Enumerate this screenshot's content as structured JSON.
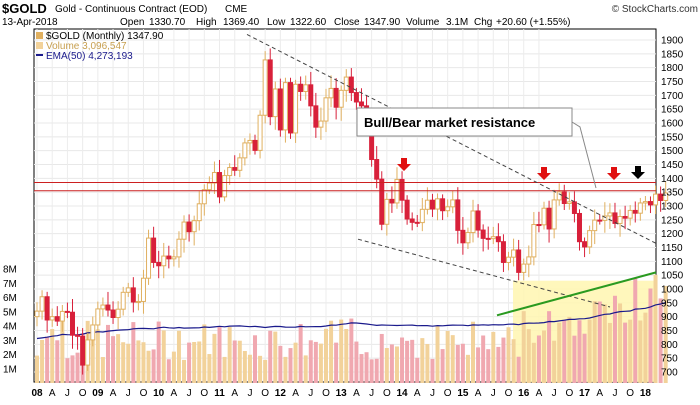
{
  "header": {
    "title": "$GOLD",
    "contract": "Gold - Continuous Contract (EOD)",
    "exchange": "CME",
    "watermark": "© StockCharts.com",
    "date": "13-Apr-2018",
    "open_label": "Open",
    "open": "1330.70",
    "high_label": "High",
    "high": "1369.40",
    "low_label": "Low",
    "low": "1322.60",
    "close_label": "Close",
    "close": "1347.90",
    "volume_label": "Volume",
    "volume": "3.1M",
    "chg_label": "Chg",
    "chg": "+20.60 (+1.55%)"
  },
  "legend": {
    "price": "$GOLD (Monthly) 1347.90",
    "volume": "Volume 3,096,547",
    "ema": "EMA(50) 4,273,193"
  },
  "annotation": {
    "text": "Bull/Bear market resistance"
  },
  "colors": {
    "up": "#e0b060",
    "down": "#d8203a",
    "up_vol": "#f2d29a",
    "down_vol": "#f0a8b0",
    "ema": "#1a1a8c",
    "resistance": "#cc2020",
    "support": "#2a9a20",
    "arrow_red": "#e01010",
    "arrow_black": "#000000",
    "highlight": "#fff6b0"
  },
  "chart_data": {
    "type": "candlestick",
    "title": "$GOLD (Monthly) 1347.90",
    "price_axis": {
      "ticks": [
        1900,
        1850,
        1800,
        1750,
        1700,
        1650,
        1600,
        1550,
        1500,
        1450,
        1400,
        1350,
        1300,
        1250,
        1200,
        1150,
        1100,
        1050,
        1000,
        950,
        900,
        850,
        800,
        750,
        700
      ],
      "range": [
        700,
        1925
      ]
    },
    "volume_axis": {
      "labels": [
        "8M",
        "7M",
        "6M",
        "5M",
        "4M",
        "3M",
        "2M",
        "1M"
      ],
      "values": [
        8,
        7,
        6,
        5,
        4,
        3,
        2,
        1
      ],
      "unit": "M"
    },
    "x_axis": {
      "years": [
        "08",
        "09",
        "10",
        "11",
        "12",
        "13",
        "14",
        "15",
        "16",
        "17",
        "18"
      ],
      "months": [
        "A",
        "J",
        "O",
        "A",
        "J",
        "O",
        "A",
        "J",
        "O",
        "A",
        "J",
        "O",
        "A",
        "J",
        "O",
        "A",
        "J",
        "O",
        "A",
        "J",
        "O",
        "A",
        "J",
        "O",
        "A",
        "J",
        "O",
        "A",
        "J",
        "O",
        "A",
        "J",
        "O",
        "A"
      ]
    },
    "series": [
      {
        "name": "$GOLD",
        "close": [
          920,
          972,
          888,
          900,
          884,
          919,
          916,
          833,
          829,
          725,
          816,
          870,
          928,
          942,
          924,
          897,
          927,
          988,
          1004,
          953,
          955,
          1039,
          1184,
          1096,
          1084,
          1119,
          1109,
          1116,
          1180,
          1242,
          1207,
          1247,
          1308,
          1359,
          1383,
          1421,
          1333,
          1410,
          1439,
          1429,
          1474,
          1528,
          1537,
          1501,
          1628,
          1828,
          1623,
          1723,
          1575,
          1746,
          1564,
          1740,
          1714,
          1738,
          1662,
          1585,
          1607,
          1691,
          1725,
          1657,
          1718,
          1766,
          1710,
          1676,
          1662,
          1598,
          1468,
          1397,
          1234,
          1324,
          1311,
          1396,
          1321,
          1253,
          1241,
          1240,
          1288,
          1321,
          1289,
          1326,
          1283,
          1297,
          1322,
          1212,
          1167,
          1204,
          1282,
          1213,
          1183,
          1182,
          1189,
          1171,
          1096,
          1115,
          1141,
          1060,
          1090,
          1116,
          1233,
          1232,
          1292,
          1217,
          1322,
          1351,
          1309,
          1315,
          1273,
          1171,
          1152,
          1211,
          1249,
          1248,
          1264,
          1275,
          1237,
          1262,
          1256,
          1284,
          1274,
          1311,
          1316,
          1304,
          1343,
          1320,
          1347
        ]
      }
    ],
    "annotations": [
      "Bull/Bear market resistance"
    ]
  }
}
